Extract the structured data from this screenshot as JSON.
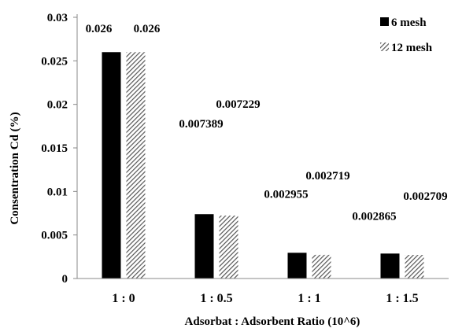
{
  "chart_data": {
    "type": "bar",
    "xlabel": "Adsorbat : Adsorbent Ratio (10^6)",
    "ylabel": "Consentration Cd (%)",
    "ylim": [
      0,
      0.03
    ],
    "yticks": [
      "0",
      "0.005",
      "0.01",
      "0.015",
      "0.02",
      "0.025",
      "0.03"
    ],
    "categories": [
      "1 : 0",
      "1 : 0.5",
      "1 : 1",
      "1 : 1.5"
    ],
    "series": [
      {
        "name": "6 mesh",
        "values": [
          0.026,
          0.007389,
          0.002955,
          0.002865
        ],
        "labels": [
          "0.026",
          "0.007389",
          "0.002955",
          "0.002865"
        ],
        "fill": "solid-black"
      },
      {
        "name": "12 mesh",
        "values": [
          0.026,
          0.007229,
          0.002719,
          0.002709
        ],
        "labels": [
          "0.026",
          "0.007229",
          "0.002719",
          "0.002709"
        ],
        "fill": "diagonal-hatch"
      }
    ],
    "grid": false,
    "legend_position": "top-right",
    "colors": {
      "bar_dark": "#000000",
      "hatch_line": "#555555",
      "hatch_bg": "#ffffff",
      "axis": "#888888"
    }
  }
}
